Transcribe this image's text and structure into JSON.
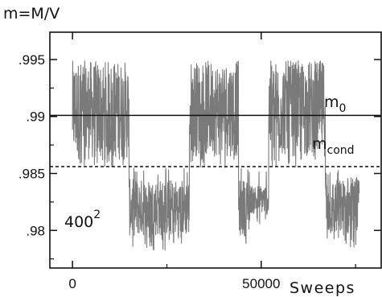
{
  "chart_data": {
    "type": "line",
    "title": "m=M/V",
    "xlabel": "Sweeps",
    "ylabel": "m=M/V",
    "xlim": [
      -6000,
      82000
    ],
    "ylim": [
      0.9767,
      0.9974
    ],
    "xticks": [
      {
        "value": 0,
        "label": "0"
      },
      {
        "value": 50000,
        "label": "50000"
      }
    ],
    "yticks": [
      {
        "value": 0.995,
        "label": ".995"
      },
      {
        "value": 0.99,
        "label": ".99"
      },
      {
        "value": 0.985,
        "label": ".985"
      },
      {
        "value": 0.98,
        "label": ".98"
      }
    ],
    "grid": false,
    "reference_lines": [
      {
        "name": "m",
        "subscript": "0",
        "value": 0.9901,
        "style": "solid"
      },
      {
        "name": "m",
        "subscript": "cond",
        "value": 0.9856,
        "style": "dashed"
      }
    ],
    "annotation": {
      "base": "400",
      "superscript": "2"
    },
    "series": [
      {
        "color": "#7a7a7a",
        "segments": [
          {
            "x_start": 0,
            "x_end": 15000,
            "band_high": 0.9949,
            "band_low": 0.9862,
            "min": 0.9855
          },
          {
            "x_start": 15000,
            "x_end": 31000,
            "band_high": 0.9845,
            "band_low": 0.9795,
            "min": 0.9782,
            "max": 0.9855
          },
          {
            "x_start": 31000,
            "x_end": 44000,
            "band_high": 0.9949,
            "band_low": 0.9865,
            "min": 0.9855
          },
          {
            "x_start": 44000,
            "x_end": 47000,
            "band_high": 0.9845,
            "band_low": 0.9795,
            "min": 0.9782,
            "max": 0.9855
          },
          {
            "x_start": 47000,
            "x_end": 52000,
            "band_high": 0.984,
            "band_low": 0.9815,
            "min": 0.9805,
            "max": 0.9855
          },
          {
            "x_start": 52000,
            "x_end": 67000,
            "band_high": 0.9949,
            "band_low": 0.9865,
            "min": 0.9855
          },
          {
            "x_start": 67000,
            "x_end": 76000,
            "band_high": 0.9845,
            "band_low": 0.9795,
            "min": 0.9782,
            "max": 0.9855
          }
        ]
      }
    ]
  }
}
